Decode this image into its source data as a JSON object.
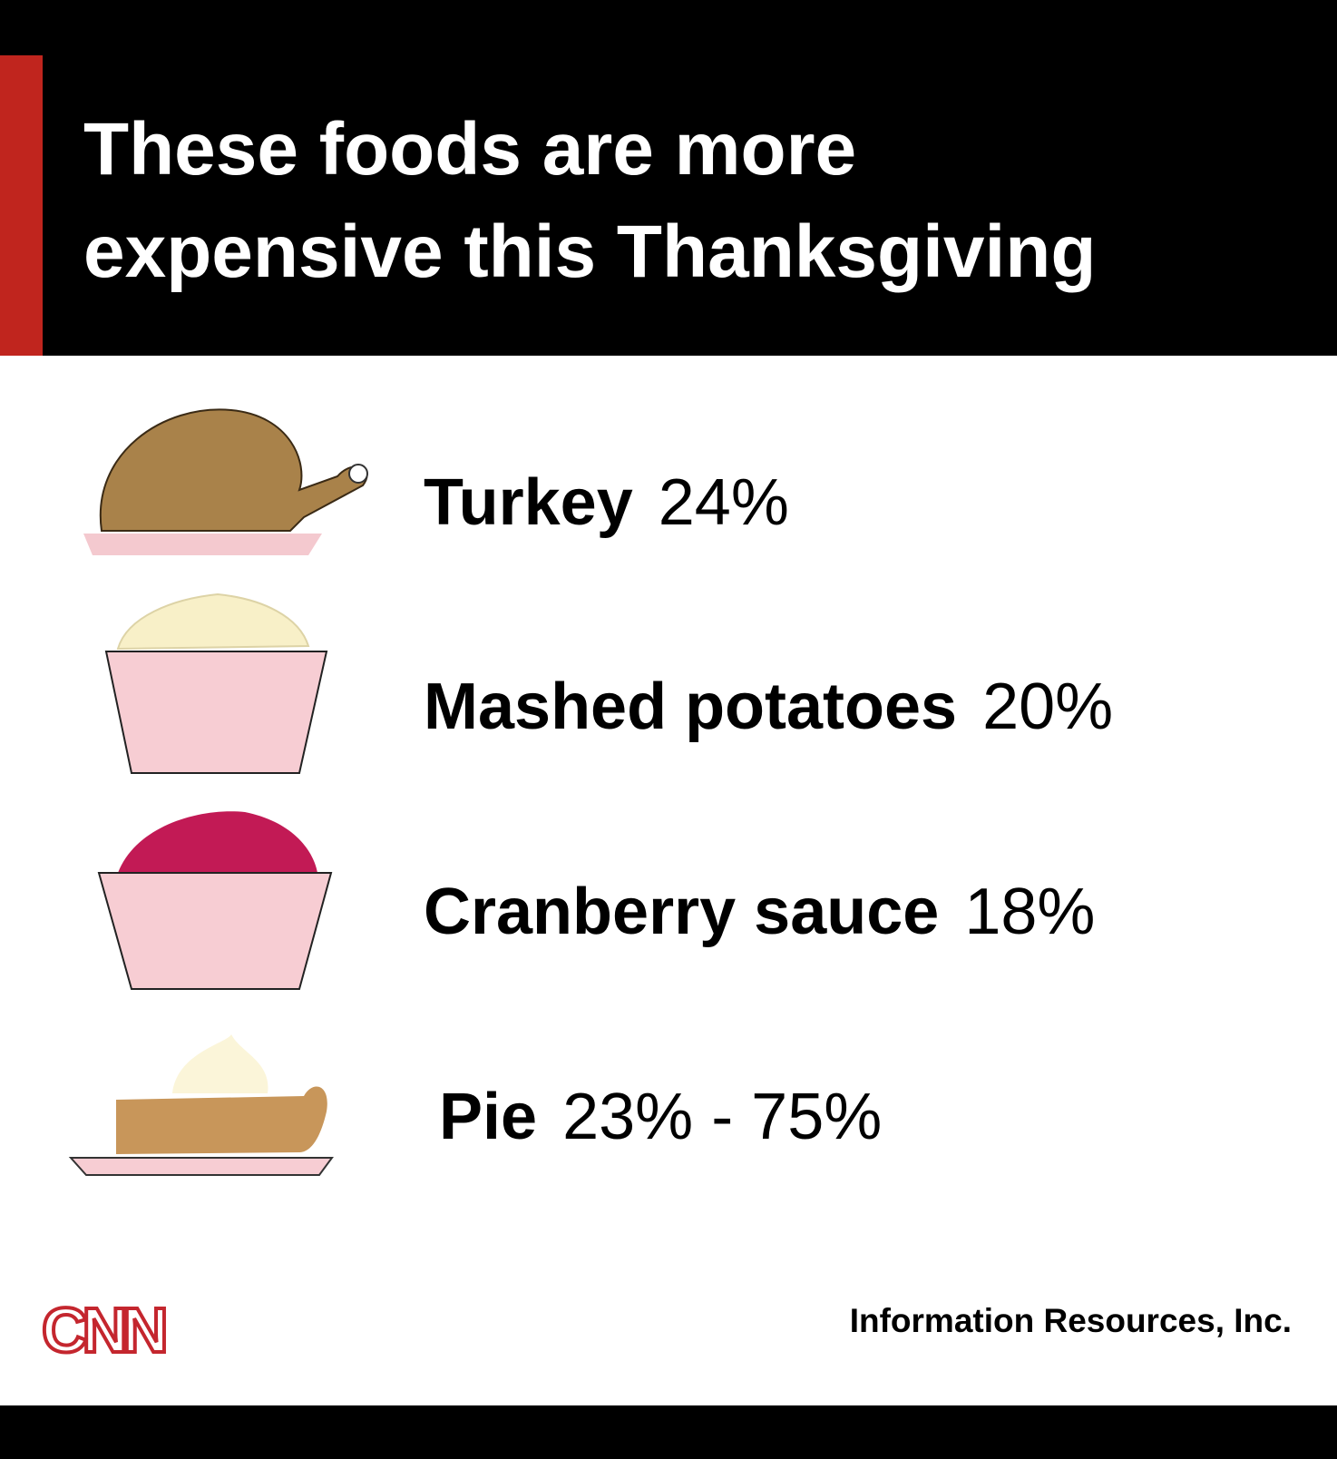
{
  "header": {
    "title_lines": [
      "These foods are more",
      "expensive this Thanksgiving"
    ]
  },
  "items": [
    {
      "name": "Turkey",
      "change": "24%"
    },
    {
      "name": "Mashed potatoes",
      "change": "20%"
    },
    {
      "name": "Cranberry sauce",
      "change": "18%"
    },
    {
      "name": "Pie",
      "change": "23% - 75%"
    }
  ],
  "footer": {
    "logo": "CNN",
    "source": "Information Resources, Inc."
  }
}
